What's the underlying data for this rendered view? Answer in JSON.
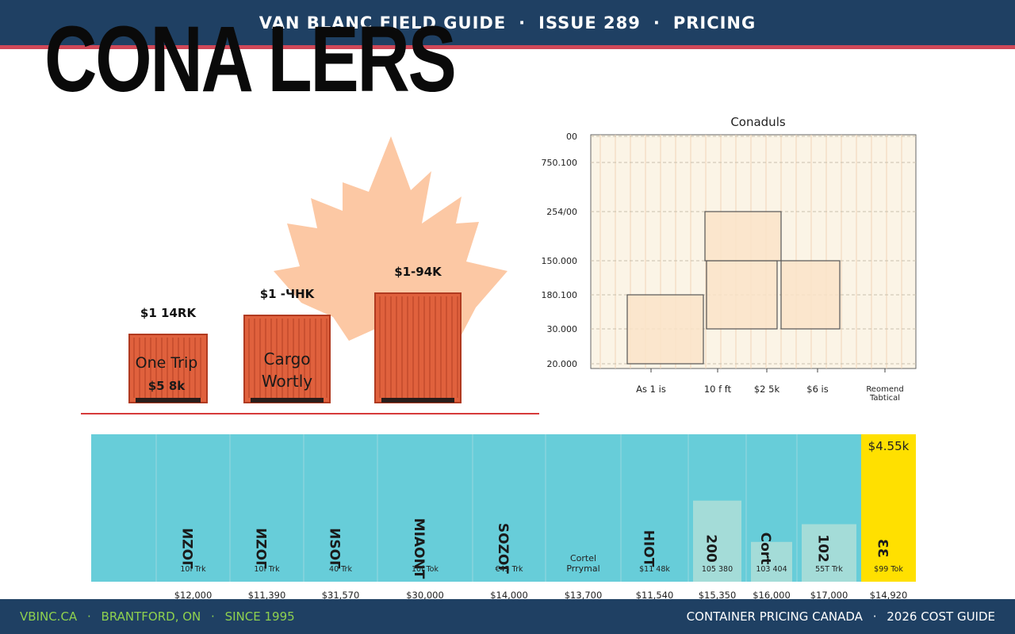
{
  "header": {
    "part1": "VAN BLANC FIELD GUIDE",
    "part2": "ISSUE 289",
    "part3": "PRICING",
    "sep": "·"
  },
  "title": "CONA LERS",
  "colors": {
    "navy": "#1f4063",
    "red_rule": "#d04858",
    "container": "#e0613d",
    "maple": "#fcc8a4",
    "teal": "#67cdd9",
    "yellow": "#ffe000",
    "lime": "#8fd14f"
  },
  "containers": [
    {
      "top_label": "$1 14RK",
      "labels": [
        "One Trip",
        "$5 8k"
      ]
    },
    {
      "top_label": "$1 -ЧHK",
      "labels": [
        "Cargo",
        "Wortly"
      ]
    },
    {
      "top_label": "$1-94K",
      "labels": []
    }
  ],
  "chart_data": [
    {
      "type": "bar",
      "title": "Conaduls",
      "y_tick_labels": [
        "00",
        "750.100",
        "254/00",
        "150.000",
        "180.100",
        "30.000",
        "20.000"
      ],
      "categories": [
        "As 1 is",
        "10 f ft",
        "$2 5k",
        "$6 is",
        "Reomend Tabtical"
      ],
      "blocks": [
        {
          "category": "As 1 is",
          "y_from_tick": "20.000",
          "y_to_tick": "180.100"
        },
        {
          "category": "10 f ft",
          "y_from_tick": "30.000",
          "y_to_tick": "150.000"
        },
        {
          "category": "10 f ft",
          "y_from_tick": "150.000",
          "y_to_tick": "254/00"
        },
        {
          "category": "$2 5k",
          "y_from_tick": "30.000",
          "y_to_tick": "150.000"
        }
      ],
      "grid": true
    },
    {
      "type": "bar",
      "columns": [
        {
          "label": "",
          "sub": "",
          "price": "",
          "highlight": false
        },
        {
          "label": "ИZOГ",
          "sub": "10f Trk",
          "price": "$12,000",
          "highlight": false
        },
        {
          "label": "ИZOГ",
          "sub": "10f Trk",
          "price": "$11,390",
          "highlight": false
        },
        {
          "label": "ИSOГ",
          "sub": "40 Trk",
          "price": "$31,570",
          "highlight": false
        },
        {
          "label": "MIAONT",
          "sub": "10f Tok",
          "price": "$30,000",
          "highlight": false
        },
        {
          "label": "SOZOГ",
          "sub": "€45 Trk",
          "price": "$14,000",
          "highlight": false
        },
        {
          "label": "Cortel Prrymal",
          "sub": "",
          "price": "$13,700",
          "highlight": false
        },
        {
          "label": "HIOT",
          "sub": "$11 48k",
          "price": "$11,540",
          "highlight": false,
          "bar_level": 0
        },
        {
          "label": "200",
          "sub": "105 380",
          "price": "$15,350",
          "highlight": false,
          "bar_level": 0.55
        },
        {
          "label": "Cort",
          "sub": "103 404",
          "price": "$16,000",
          "highlight": false,
          "bar_level": 0.27
        },
        {
          "label": "102",
          "sub": "55T Trk",
          "price": "$17,000",
          "highlight": false,
          "bar_level": 0.39
        },
        {
          "label": "ƐƐ",
          "sub": "$99 Tok",
          "price": "$14,920",
          "highlight": true,
          "top_value": "$4.55k"
        }
      ]
    }
  ],
  "footer": {
    "left": [
      "VBINC.CA",
      "BRANTFORD, ON",
      "SINCE 1995"
    ],
    "right": [
      "CONTAINER PRICING CANADA",
      "2026 COST GUIDE"
    ],
    "sep": "·"
  }
}
